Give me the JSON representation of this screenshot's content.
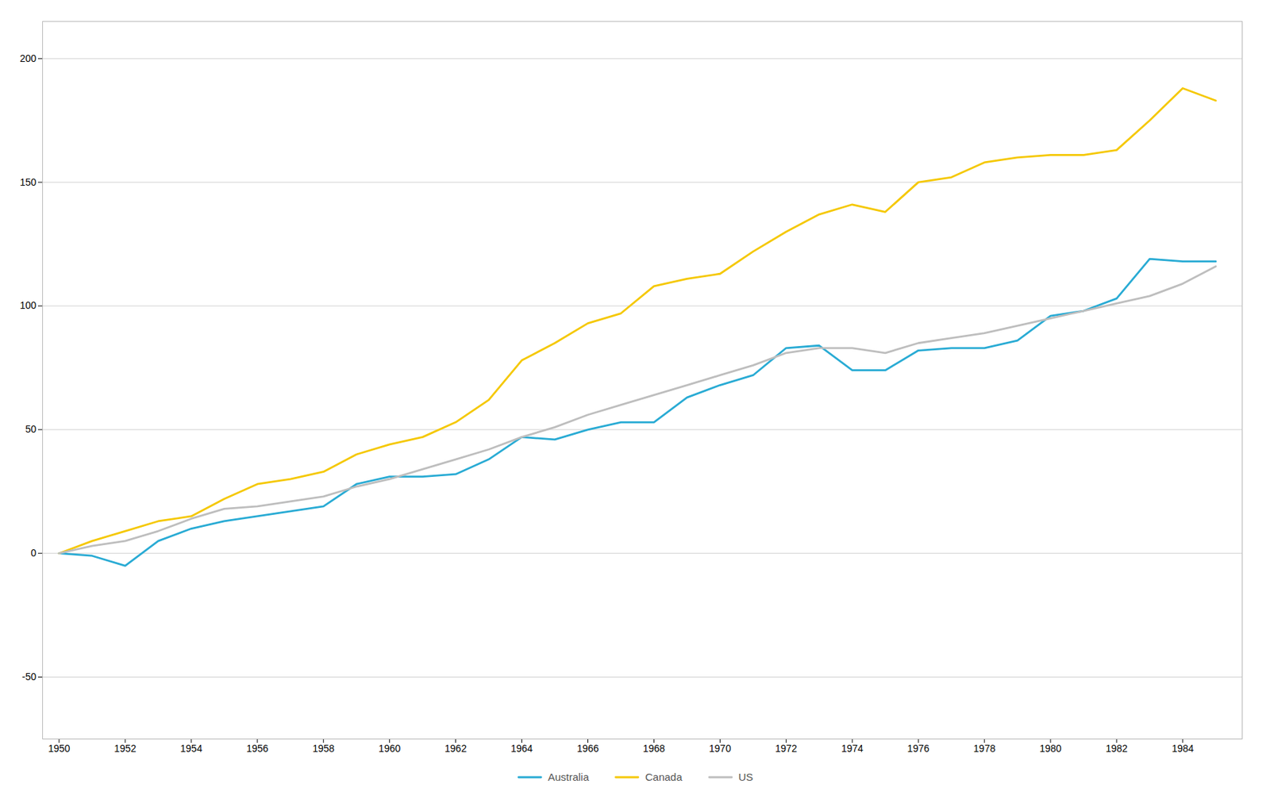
{
  "chart_data": {
    "type": "line",
    "x": [
      1950,
      1951,
      1952,
      1953,
      1954,
      1955,
      1956,
      1957,
      1958,
      1959,
      1960,
      1961,
      1962,
      1963,
      1964,
      1965,
      1966,
      1967,
      1968,
      1969,
      1970,
      1971,
      1972,
      1973,
      1974,
      1975,
      1976,
      1977,
      1978,
      1979,
      1980,
      1981,
      1982,
      1983,
      1984,
      1985
    ],
    "series": [
      {
        "name": "Australia",
        "color": "#29ABD4",
        "values": [
          0,
          -1,
          -5,
          5,
          10,
          13,
          15,
          17,
          19,
          28,
          31,
          31,
          32,
          38,
          47,
          46,
          50,
          53,
          53,
          63,
          68,
          72,
          83,
          84,
          74,
          74,
          82,
          83,
          83,
          86,
          96,
          98,
          103,
          119,
          118,
          118
        ]
      },
      {
        "name": "Canada",
        "color": "#F5C800",
        "values": [
          0,
          5,
          9,
          13,
          15,
          22,
          28,
          30,
          33,
          40,
          44,
          47,
          53,
          62,
          78,
          85,
          93,
          97,
          108,
          111,
          113,
          122,
          130,
          137,
          141,
          138,
          150,
          152,
          158,
          160,
          161,
          161,
          163,
          175,
          188,
          183
        ]
      },
      {
        "name": "US",
        "color": "#BEBEBE",
        "values": [
          0,
          3,
          5,
          9,
          14,
          18,
          19,
          21,
          23,
          27,
          30,
          34,
          38,
          42,
          47,
          51,
          56,
          60,
          64,
          68,
          72,
          76,
          81,
          83,
          83,
          81,
          85,
          87,
          89,
          92,
          95,
          98,
          101,
          104,
          109,
          116
        ]
      }
    ],
    "xlim": [
      1949.5,
      1985.8
    ],
    "xticks": [
      1950,
      1952,
      1954,
      1956,
      1958,
      1960,
      1962,
      1964,
      1966,
      1968,
      1970,
      1972,
      1974,
      1976,
      1978,
      1980,
      1982,
      1984
    ],
    "ylim": [
      -75,
      215
    ],
    "yticks": [
      -50,
      0,
      50,
      100,
      150,
      200
    ],
    "grid": true,
    "legend": "bottom"
  }
}
